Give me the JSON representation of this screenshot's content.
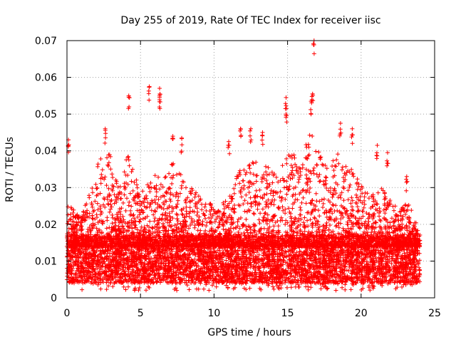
{
  "chart_data": {
    "type": "scatter",
    "title": "Day 255 of 2019, Rate Of TEC Index for receiver iisc",
    "xlabel": "GPS time / hours",
    "ylabel": "ROTI / TECUs",
    "xlim": [
      0,
      25
    ],
    "ylim": [
      0,
      0.07
    ],
    "xticks": [
      0,
      5,
      10,
      15,
      20,
      25
    ],
    "xtick_labels": [
      "0",
      "5",
      "10",
      "15",
      "20",
      "25"
    ],
    "yticks": [
      0,
      0.01,
      0.02,
      0.03,
      0.04,
      0.05,
      0.06,
      0.07
    ],
    "ytick_labels": [
      "0",
      "0.01",
      "0.02",
      "0.03",
      "0.04",
      "0.05",
      "0.06",
      "0.07"
    ],
    "grid": true,
    "marker": "+",
    "marker_color": "#ff0000",
    "x_range_of_data": [
      0,
      24
    ],
    "typical_band": [
      0.005,
      0.016
    ],
    "notable_points": [
      {
        "x": 0.1,
        "y": 0.043
      },
      {
        "x": 2.6,
        "y": 0.046
      },
      {
        "x": 4.2,
        "y": 0.055
      },
      {
        "x": 5.6,
        "y": 0.0575
      },
      {
        "x": 6.3,
        "y": 0.057
      },
      {
        "x": 6.3,
        "y": 0.0545
      },
      {
        "x": 7.2,
        "y": 0.044
      },
      {
        "x": 7.8,
        "y": 0.0435
      },
      {
        "x": 11.0,
        "y": 0.0425
      },
      {
        "x": 11.8,
        "y": 0.046
      },
      {
        "x": 12.5,
        "y": 0.046
      },
      {
        "x": 13.3,
        "y": 0.045
      },
      {
        "x": 14.9,
        "y": 0.0545
      },
      {
        "x": 14.9,
        "y": 0.05
      },
      {
        "x": 16.7,
        "y": 0.0555
      },
      {
        "x": 16.6,
        "y": 0.0535
      },
      {
        "x": 16.8,
        "y": 0.07
      },
      {
        "x": 18.6,
        "y": 0.0475
      },
      {
        "x": 19.4,
        "y": 0.046
      },
      {
        "x": 21.1,
        "y": 0.0415
      },
      {
        "x": 21.8,
        "y": 0.0395
      },
      {
        "x": 23.1,
        "y": 0.033
      }
    ],
    "activity_envelope": [
      {
        "x": 0,
        "y": 0.026
      },
      {
        "x": 1,
        "y": 0.022
      },
      {
        "x": 2,
        "y": 0.035
      },
      {
        "x": 2.6,
        "y": 0.045
      },
      {
        "x": 3.5,
        "y": 0.03
      },
      {
        "x": 4.2,
        "y": 0.04
      },
      {
        "x": 5,
        "y": 0.028
      },
      {
        "x": 5.8,
        "y": 0.034
      },
      {
        "x": 6.5,
        "y": 0.032
      },
      {
        "x": 7.2,
        "y": 0.038
      },
      {
        "x": 8,
        "y": 0.032
      },
      {
        "x": 9,
        "y": 0.028
      },
      {
        "x": 10,
        "y": 0.025
      },
      {
        "x": 11,
        "y": 0.027
      },
      {
        "x": 11.8,
        "y": 0.036
      },
      {
        "x": 12.6,
        "y": 0.038
      },
      {
        "x": 13.5,
        "y": 0.036
      },
      {
        "x": 14.4,
        "y": 0.034
      },
      {
        "x": 15,
        "y": 0.04
      },
      {
        "x": 15.8,
        "y": 0.038
      },
      {
        "x": 16.6,
        "y": 0.046
      },
      {
        "x": 17.5,
        "y": 0.036
      },
      {
        "x": 18.5,
        "y": 0.04
      },
      {
        "x": 19.5,
        "y": 0.034
      },
      {
        "x": 20.5,
        "y": 0.028
      },
      {
        "x": 21.5,
        "y": 0.03
      },
      {
        "x": 22.5,
        "y": 0.024
      },
      {
        "x": 23.2,
        "y": 0.026
      },
      {
        "x": 24,
        "y": 0.018
      }
    ]
  }
}
